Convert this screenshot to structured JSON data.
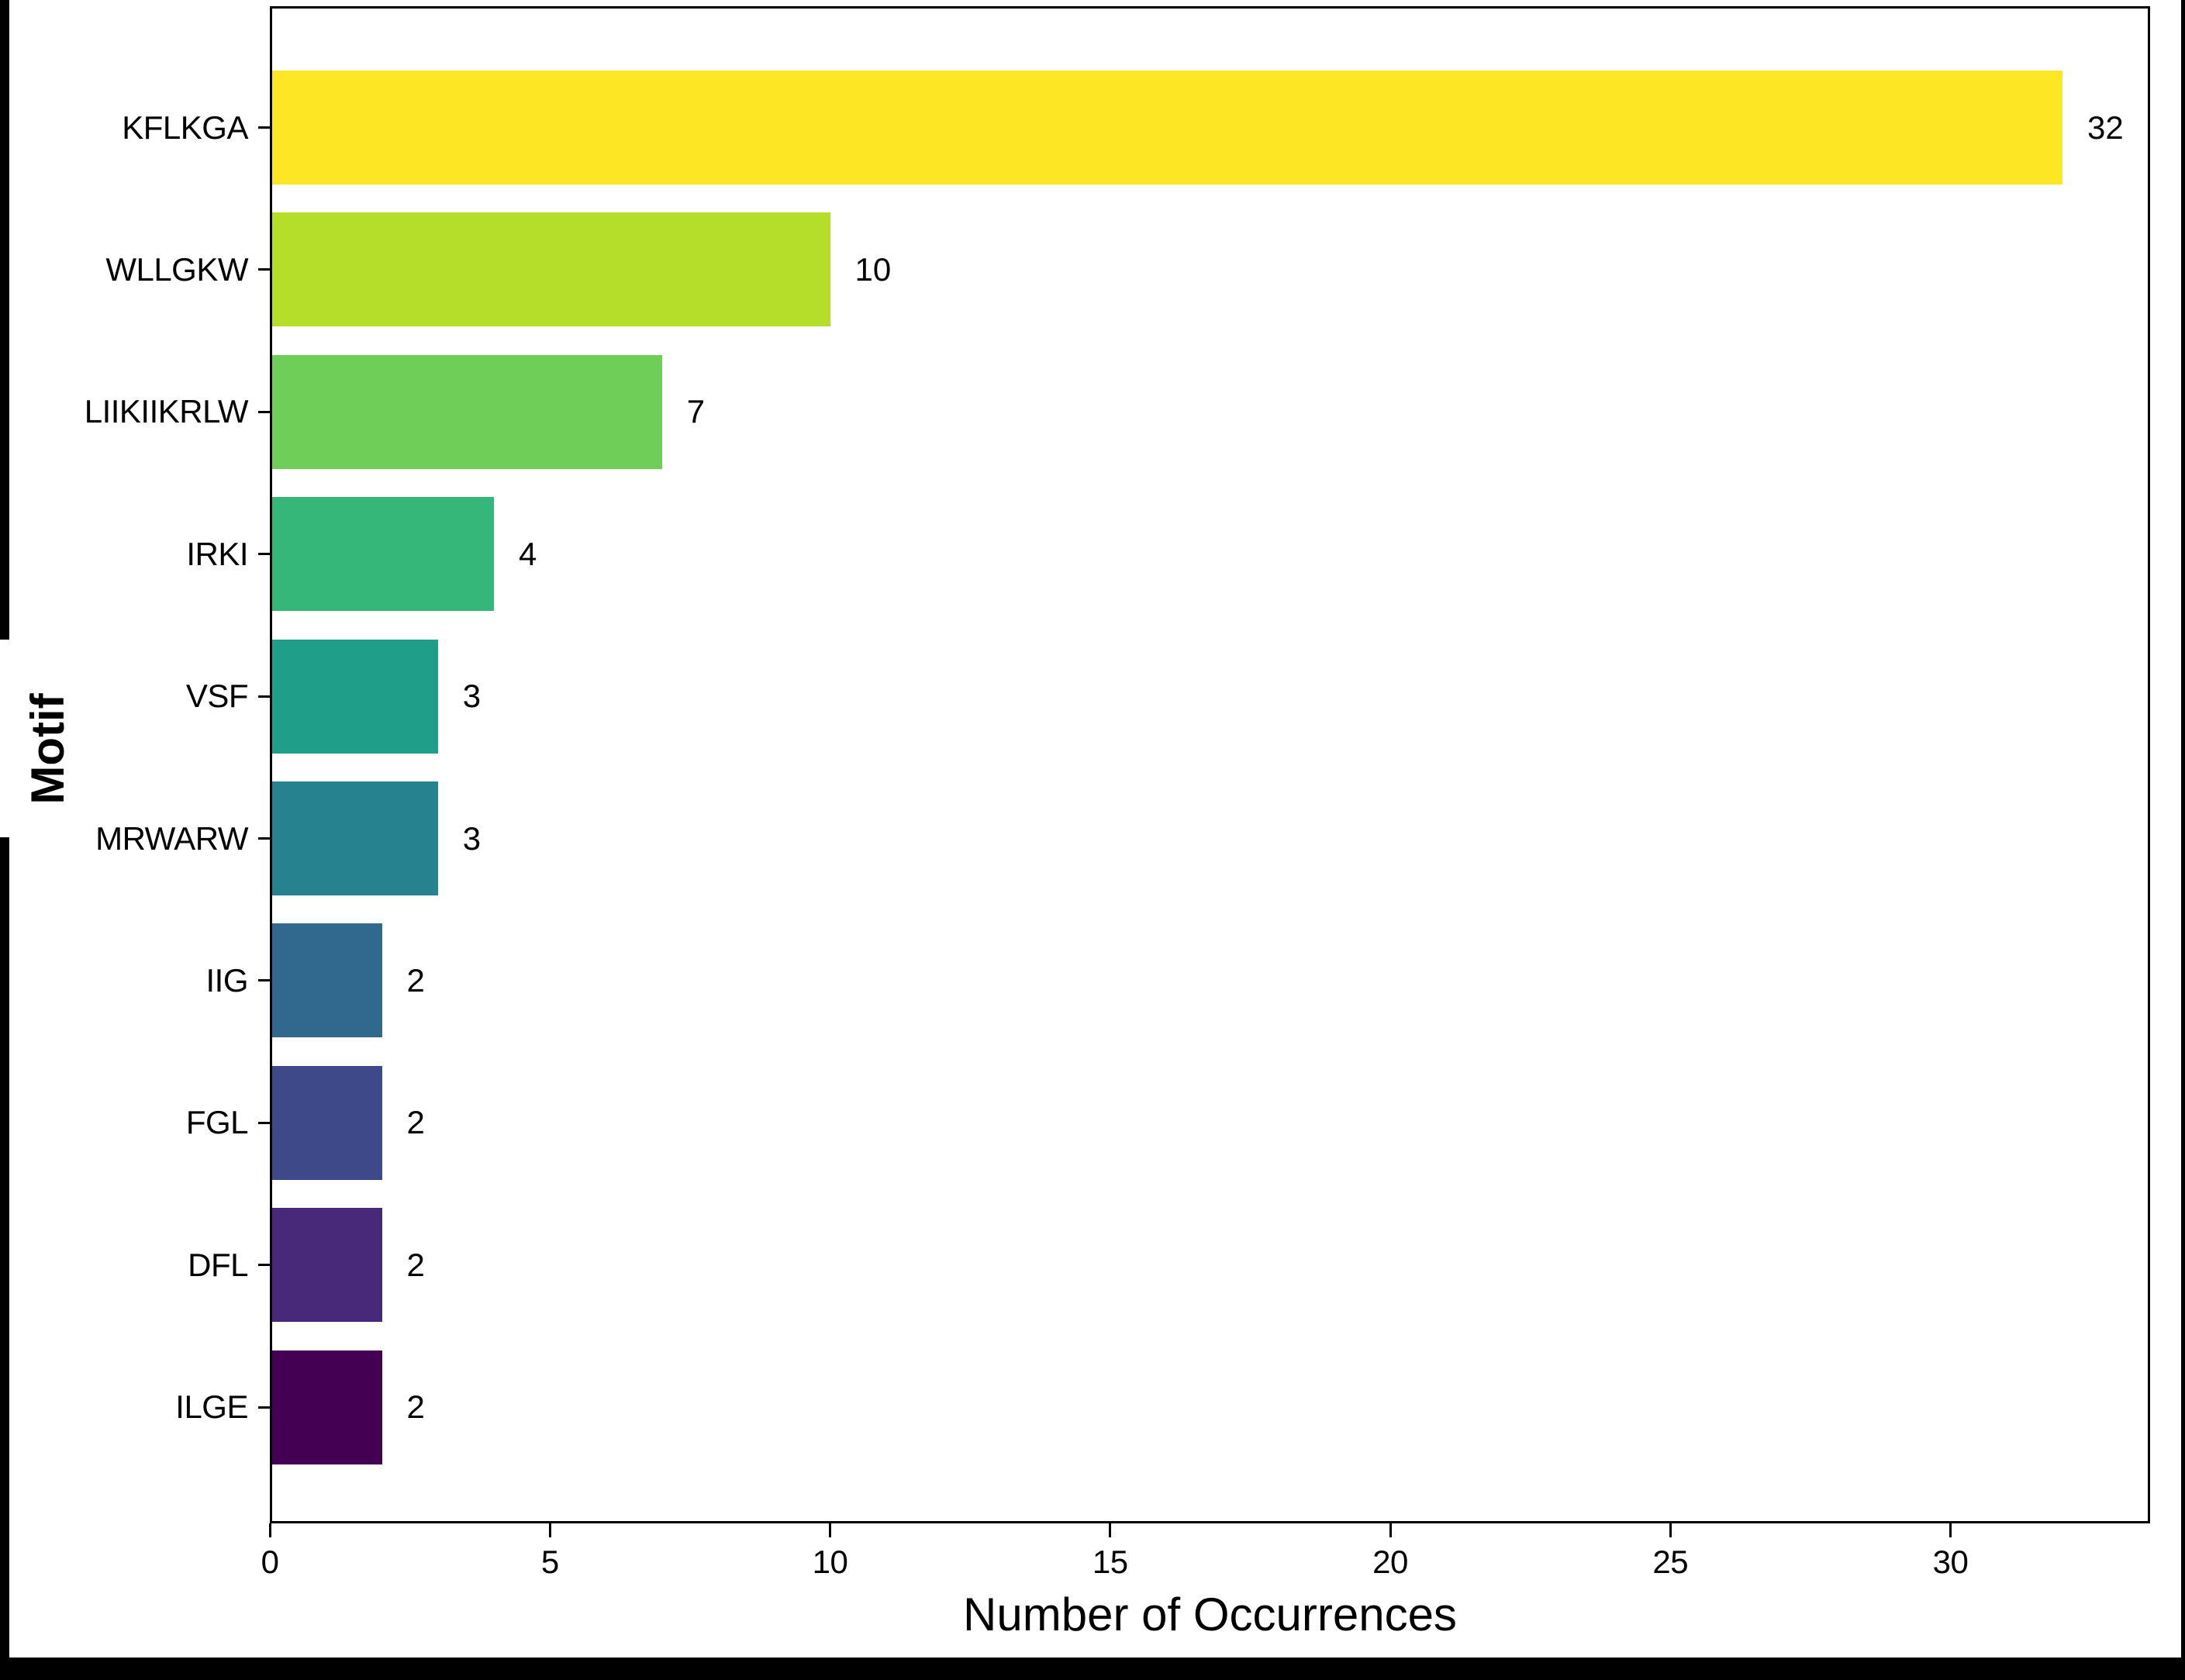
{
  "window": {
    "background": "#ffffff",
    "border_color": "#000000",
    "text_color": "#000000"
  },
  "chart_data": {
    "type": "bar",
    "orientation": "horizontal",
    "title": "",
    "xlabel": "Number of Occurrences",
    "ylabel": "Motif",
    "categories": [
      "KFLKGA",
      "WLLGKW",
      "LIIKIIKRLW",
      "IRKI",
      "VSF",
      "MRWARW",
      "IIG",
      "FGL",
      "DFL",
      "ILGE"
    ],
    "values": [
      32,
      10,
      7,
      4,
      3,
      3,
      2,
      2,
      2,
      2
    ],
    "value_labels": [
      "32",
      "10",
      "7",
      "4",
      "3",
      "3",
      "2",
      "2",
      "2",
      "2"
    ],
    "bar_colors": [
      "#fde725",
      "#b5de2b",
      "#6ece58",
      "#35b779",
      "#1f9e89",
      "#26828e",
      "#31688e",
      "#3e4989",
      "#482878",
      "#440154"
    ],
    "x_ticks": [
      0,
      5,
      10,
      15,
      20,
      25,
      30
    ],
    "x_tick_labels": [
      "0",
      "5",
      "10",
      "15",
      "20",
      "25",
      "30"
    ],
    "xlim": [
      0,
      33.6
    ],
    "ylim_categories": 10,
    "grid": false,
    "legend": null
  }
}
